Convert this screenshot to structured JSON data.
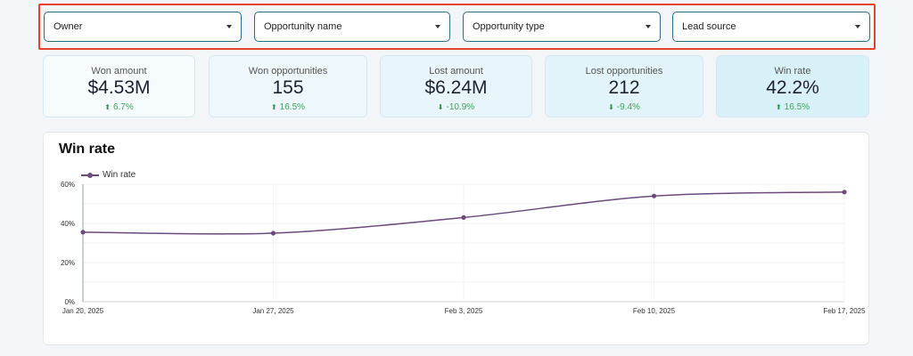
{
  "filters": [
    {
      "label": "Owner"
    },
    {
      "label": "Opportunity name"
    },
    {
      "label": "Opportunity type"
    },
    {
      "label": "Lead source"
    }
  ],
  "kpis": [
    {
      "label": "Won amount",
      "value": "$4.53M",
      "delta": "6.7%",
      "direction": "up"
    },
    {
      "label": "Won opportunities",
      "value": "155",
      "delta": "16.5%",
      "direction": "up"
    },
    {
      "label": "Lost amount",
      "value": "$6.24M",
      "delta": "-10.9%",
      "direction": "down"
    },
    {
      "label": "Lost opportunities",
      "value": "212",
      "delta": "-9.4%",
      "direction": "down"
    },
    {
      "label": "Win rate",
      "value": "42.2%",
      "delta": "16.5%",
      "direction": "up"
    }
  ],
  "chart_panel": {
    "title": "Win rate",
    "legend_label": "Win rate"
  },
  "chart_data": {
    "type": "line",
    "title": "Win rate",
    "x": [
      "Jan 20, 2025",
      "Jan 27, 2025",
      "Feb 3, 2025",
      "Feb 10, 2025",
      "Feb 17, 2025"
    ],
    "series": [
      {
        "name": "Win rate",
        "values": [
          35.5,
          35,
          43,
          54,
          56
        ]
      }
    ],
    "yticks": [
      "0%",
      "20%",
      "40%",
      "60%"
    ],
    "ylim": [
      0,
      60
    ],
    "grid": true,
    "legend": "top-left",
    "line_color": "#6c4a7e"
  },
  "colors": {
    "highlight_border": "#e5432d",
    "filter_border": "#2f6f86",
    "positive_delta": "#3aa655"
  }
}
